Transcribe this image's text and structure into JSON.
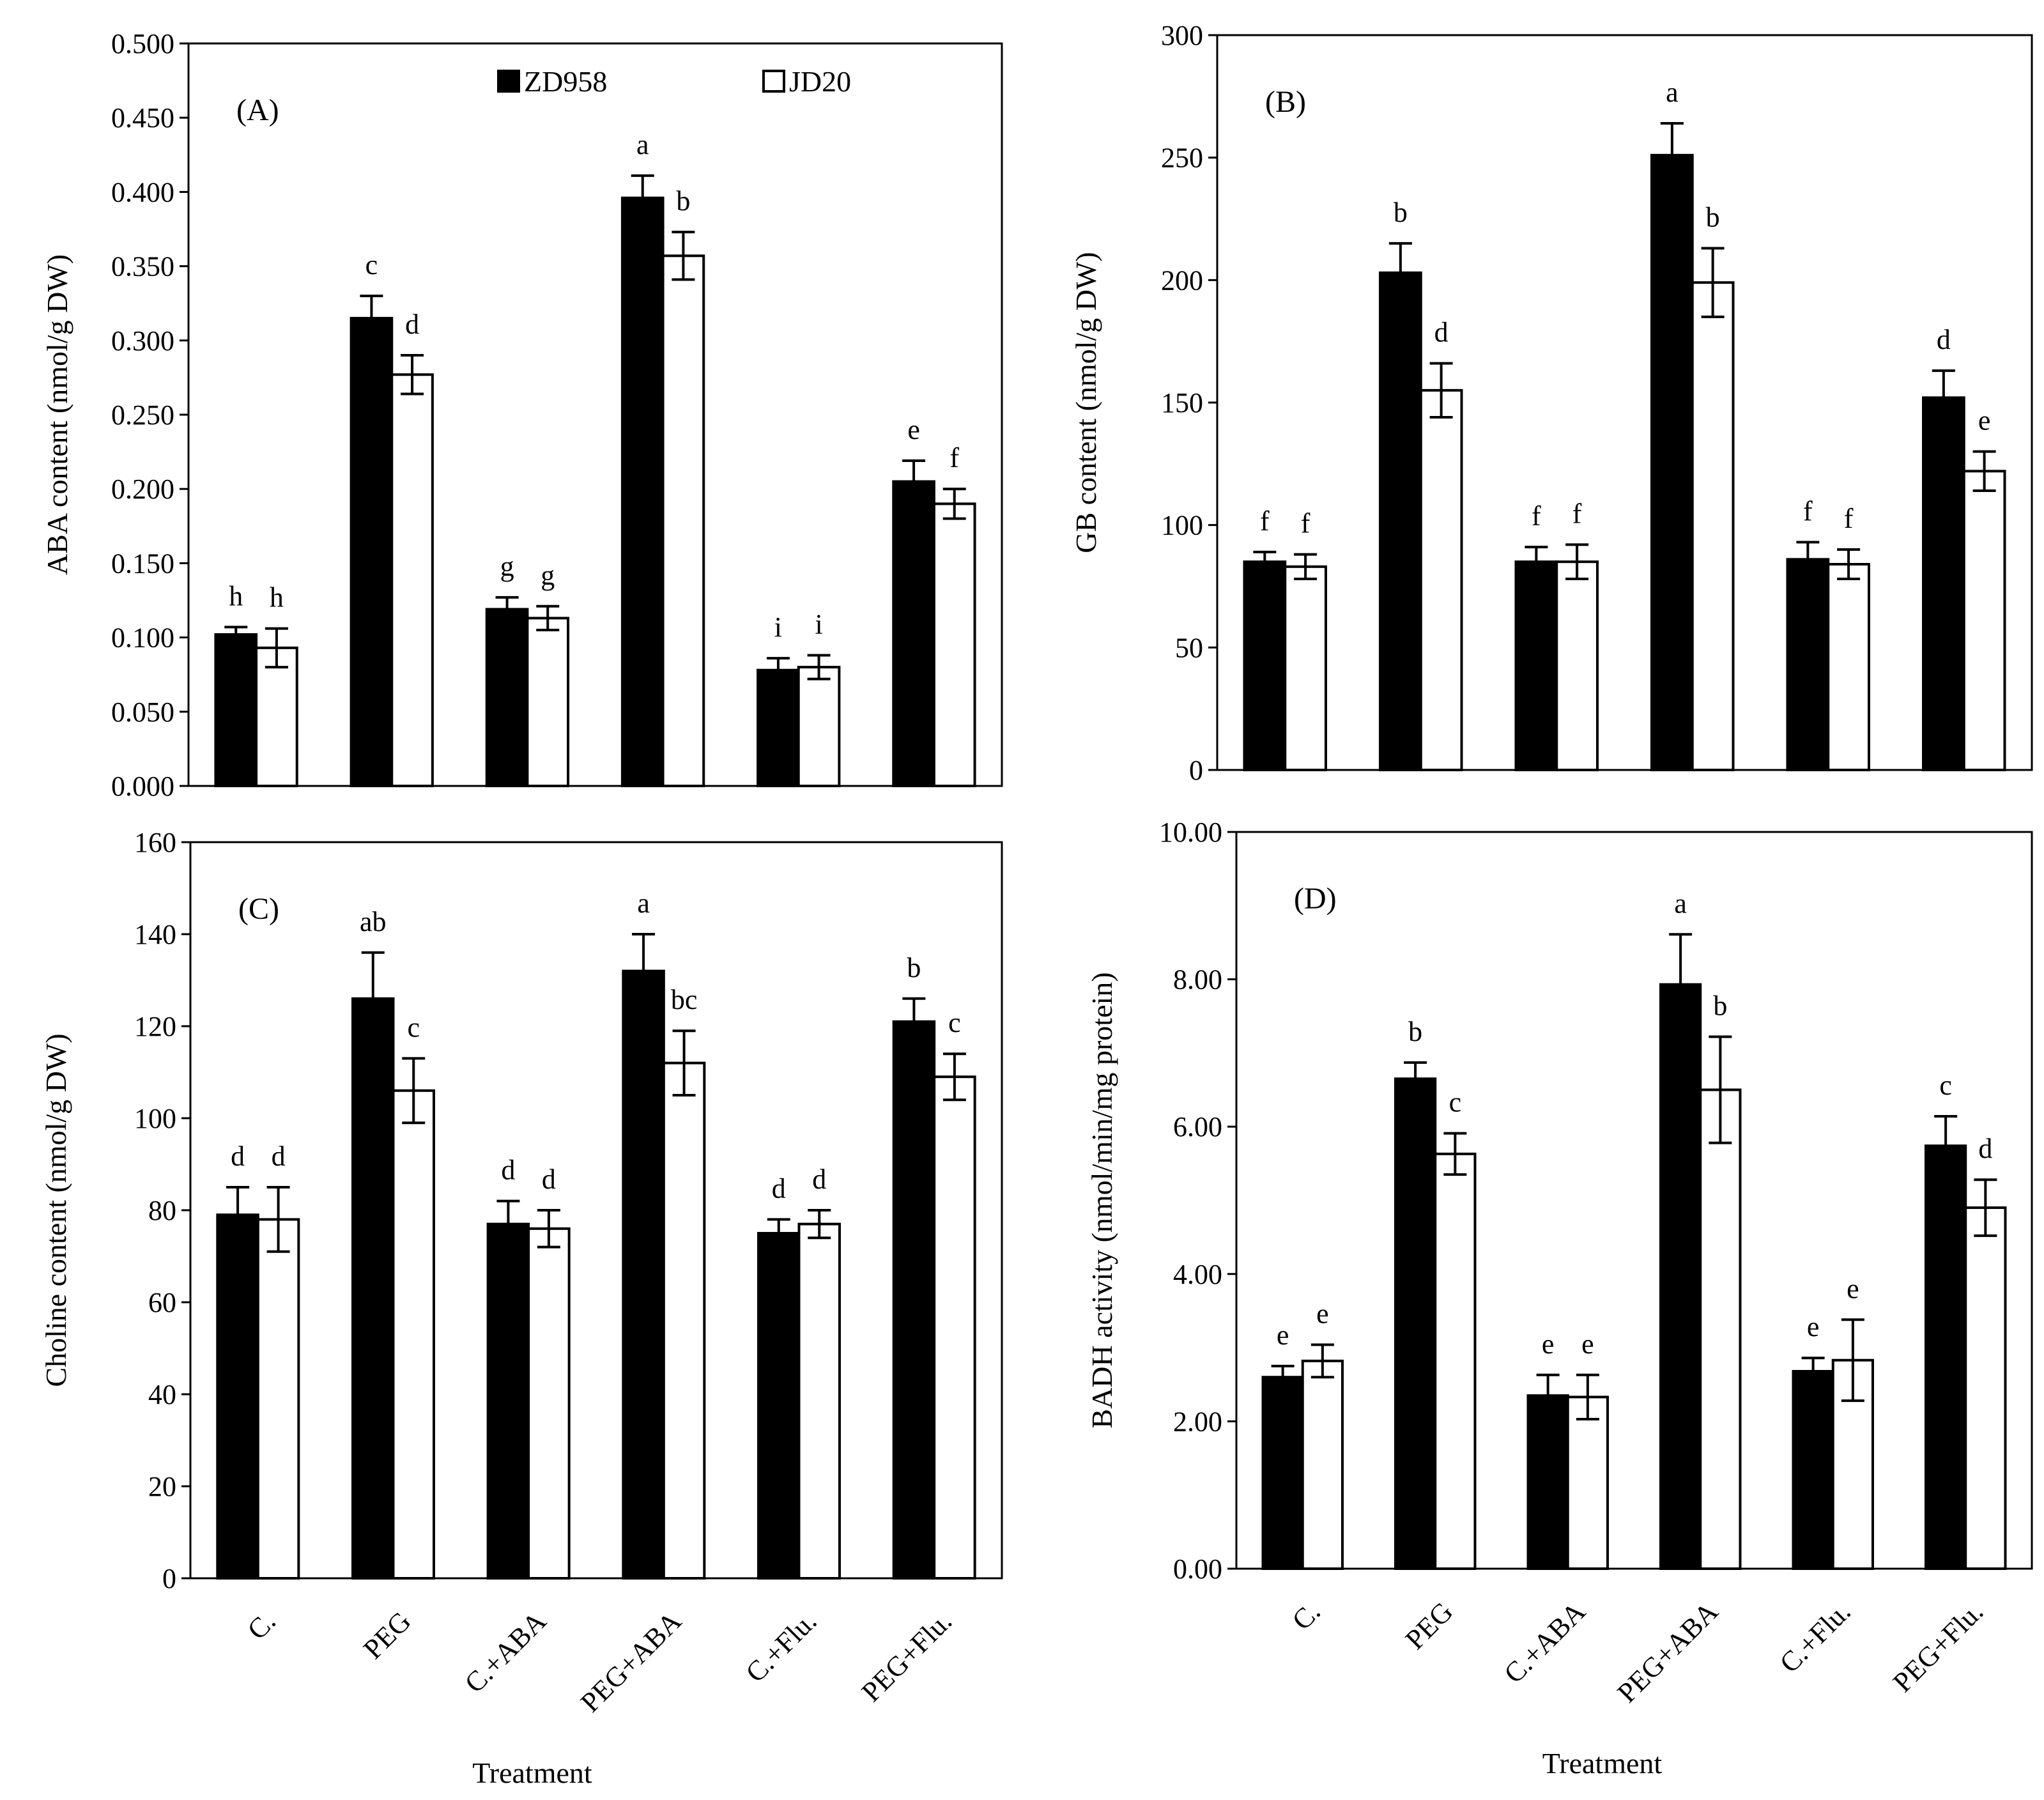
{
  "chart_data": [
    {
      "id": "A",
      "type": "bar",
      "panel_label": "(A)",
      "ylabel": "ABA content (nmol/g DW)",
      "xlabel": "",
      "ylim": [
        0,
        0.5
      ],
      "yticks": [
        "0.000",
        "0.050",
        "0.100",
        "0.150",
        "0.200",
        "0.250",
        "0.300",
        "0.350",
        "0.400",
        "0.450",
        "0.500"
      ],
      "categories": [
        "C.",
        "PEG",
        "C.+ABA",
        "PEG+ABA",
        "C.+Flu.",
        "PEG+Flu."
      ],
      "show_category_labels": false,
      "legend": {
        "position": "top",
        "items": [
          "ZD958",
          "JD20"
        ]
      },
      "series": [
        {
          "name": "ZD958",
          "color": "#000000",
          "values": [
            0.102,
            0.315,
            0.119,
            0.396,
            0.078,
            0.205
          ],
          "errors": [
            0.005,
            0.015,
            0.008,
            0.015,
            0.008,
            0.014
          ],
          "letters": [
            "h",
            "c",
            "g",
            "a",
            "i",
            "e"
          ]
        },
        {
          "name": "JD20",
          "color": "#ffffff",
          "values": [
            0.093,
            0.277,
            0.113,
            0.357,
            0.08,
            0.19
          ],
          "errors": [
            0.013,
            0.013,
            0.008,
            0.016,
            0.008,
            0.01
          ],
          "letters": [
            "h",
            "d",
            "g",
            "b",
            "i",
            "f"
          ]
        }
      ]
    },
    {
      "id": "B",
      "type": "bar",
      "panel_label": "(B)",
      "ylabel": "GB content (nmol/g DW)",
      "xlabel": "",
      "ylim": [
        0,
        300
      ],
      "yticks": [
        "0",
        "50",
        "100",
        "150",
        "200",
        "250",
        "300"
      ],
      "categories": [
        "C.",
        "PEG",
        "C.+ABA",
        "PEG+ABA",
        "C.+Flu.",
        "PEG+Flu."
      ],
      "show_category_labels": false,
      "series": [
        {
          "name": "ZD958",
          "color": "#000000",
          "values": [
            85,
            203,
            85,
            251,
            86,
            152
          ],
          "errors": [
            4,
            12,
            6,
            13,
            7,
            11
          ],
          "letters": [
            "f",
            "b",
            "f",
            "a",
            "f",
            "d"
          ]
        },
        {
          "name": "JD20",
          "color": "#ffffff",
          "values": [
            83,
            155,
            85,
            199,
            84,
            122
          ],
          "errors": [
            5,
            11,
            7,
            14,
            6,
            8
          ],
          "letters": [
            "f",
            "d",
            "f",
            "b",
            "f",
            "e"
          ]
        }
      ]
    },
    {
      "id": "C",
      "type": "bar",
      "panel_label": "(C)",
      "ylabel": "Choline content (nmol/g DW)",
      "xlabel": "Treatment",
      "ylim": [
        0,
        160
      ],
      "yticks": [
        "0",
        "20",
        "40",
        "60",
        "80",
        "100",
        "120",
        "140",
        "160"
      ],
      "categories": [
        "C.",
        "PEG",
        "C.+ABA",
        "PEG+ABA",
        "C.+Flu.",
        "PEG+Flu."
      ],
      "show_category_labels": true,
      "series": [
        {
          "name": "ZD958",
          "color": "#000000",
          "values": [
            79,
            126,
            77,
            132,
            75,
            121
          ],
          "errors": [
            6,
            10,
            5,
            8,
            3,
            5
          ],
          "letters": [
            "d",
            "ab",
            "d",
            "a",
            "d",
            "b"
          ]
        },
        {
          "name": "JD20",
          "color": "#ffffff",
          "values": [
            78,
            106,
            76,
            112,
            77,
            109
          ],
          "errors": [
            7,
            7,
            4,
            7,
            3,
            5
          ],
          "letters": [
            "d",
            "c",
            "d",
            "bc",
            "d",
            "c"
          ]
        }
      ]
    },
    {
      "id": "D",
      "type": "bar",
      "panel_label": "(D)",
      "ylabel": "BADH activity (nmol/min/mg protein)",
      "xlabel": "Treatment",
      "ylim": [
        0,
        10
      ],
      "yticks": [
        "0.00",
        "2.00",
        "4.00",
        "6.00",
        "8.00",
        "10.00"
      ],
      "categories": [
        "C.",
        "PEG",
        "C.+ABA",
        "PEG+ABA",
        "C.+Flu.",
        "PEG+Flu."
      ],
      "show_category_labels": true,
      "series": [
        {
          "name": "ZD958",
          "color": "#000000",
          "values": [
            2.6,
            6.65,
            2.35,
            7.93,
            2.68,
            5.74
          ],
          "errors": [
            0.15,
            0.22,
            0.28,
            0.68,
            0.18,
            0.4
          ],
          "letters": [
            "e",
            "b",
            "e",
            "a",
            "e",
            "c"
          ]
        },
        {
          "name": "JD20",
          "color": "#ffffff",
          "values": [
            2.82,
            5.63,
            2.33,
            6.5,
            2.83,
            4.9
          ],
          "errors": [
            0.22,
            0.28,
            0.3,
            0.72,
            0.55,
            0.38
          ],
          "letters": [
            "e",
            "c",
            "e",
            "b",
            "e",
            "d"
          ]
        }
      ]
    }
  ]
}
